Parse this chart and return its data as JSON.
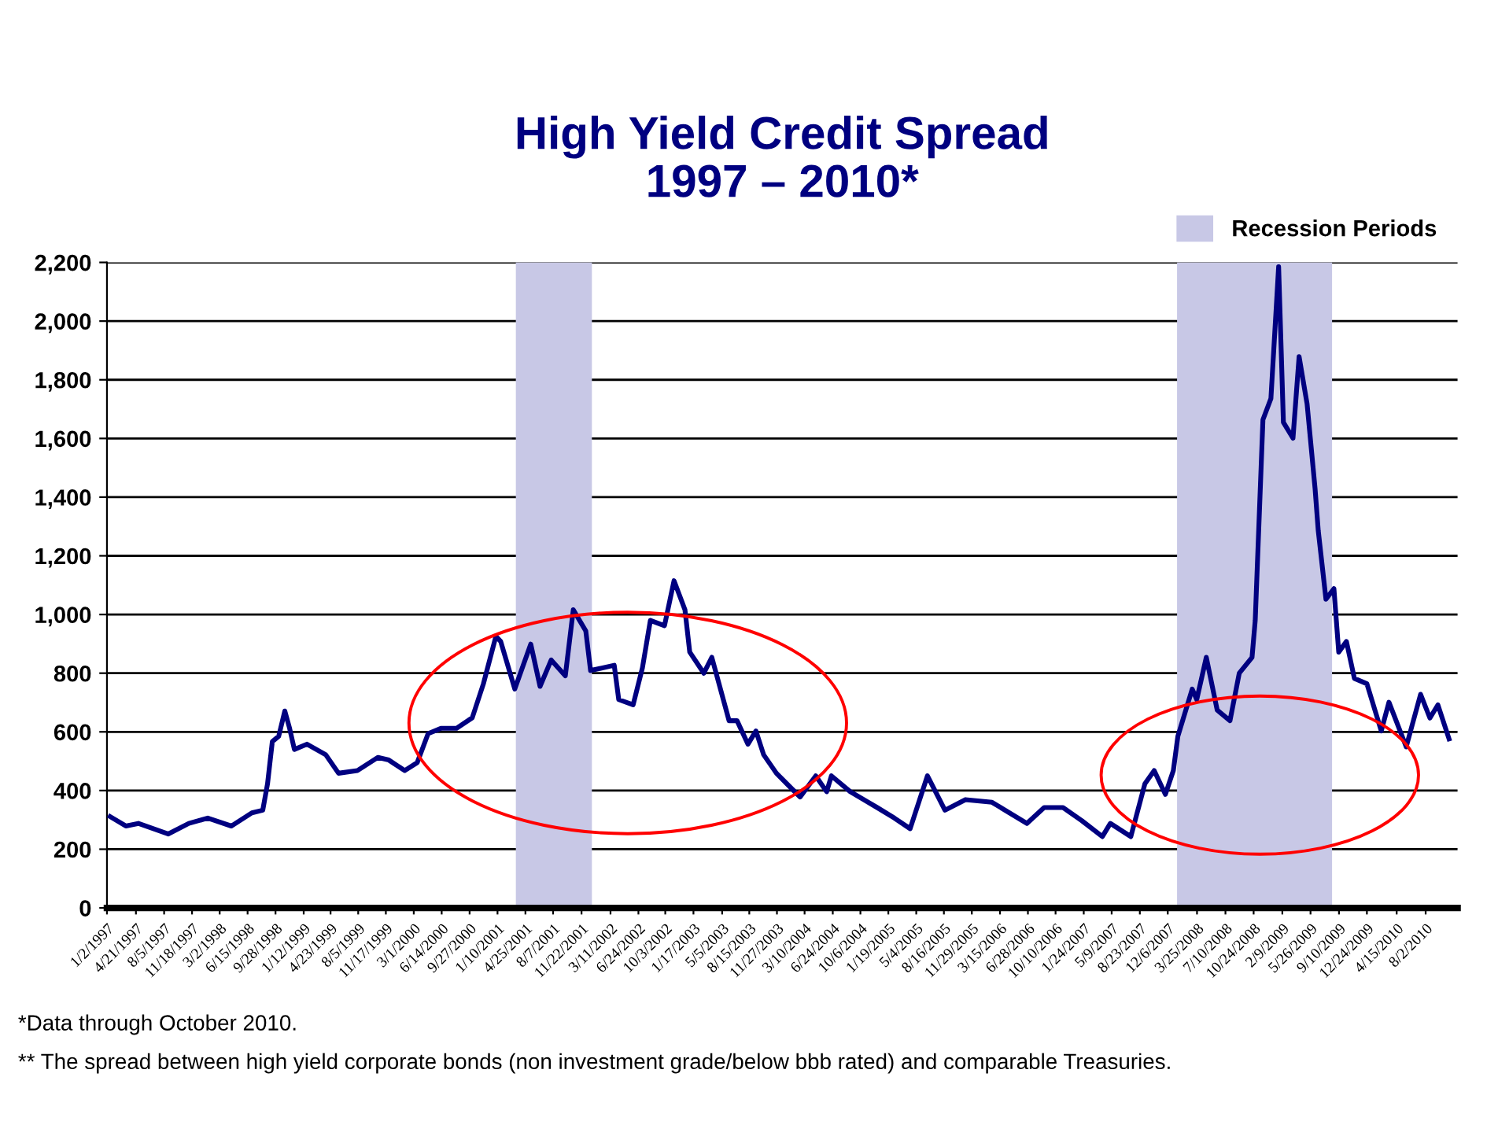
{
  "chart_data": {
    "type": "line",
    "title": "High Yield Credit Spread\n1997 – 2010*",
    "annotations": [
      "*Data through October 2010.",
      "** The spread between high yield corporate bonds (non investment grade/below bbb rated) and comparable Treasuries."
    ],
    "x": [
      "1997-01-14",
      "1997-03-14",
      "1997-04-30",
      "1997-08-21",
      "1997-11-06",
      "1998-01-16",
      "1998-04-15",
      "1998-07-01",
      "1998-08-11",
      "1998-08-29",
      "1998-09-16",
      "1998-10-10",
      "1998-11-02",
      "1998-11-20",
      "1998-12-08",
      "1999-01-24",
      "1999-04-05",
      "1999-05-23",
      "1999-08-02",
      "1999-10-18",
      "1999-11-28",
      "2000-01-27",
      "2000-03-14",
      "2000-04-24",
      "2000-06-11",
      "2000-08-09",
      "2000-10-07",
      "2000-11-18",
      "2001-01-04",
      "2001-01-22",
      "2001-03-16",
      "2001-05-15",
      "2001-06-19",
      "2001-07-31",
      "2001-09-22",
      "2001-10-22",
      "2001-12-08",
      "2001-12-26",
      "2002-03-25",
      "2002-04-11",
      "2002-06-04",
      "2002-07-09",
      "2002-08-08",
      "2002-09-30",
      "2002-11-05",
      "2002-12-16",
      "2003-01-03",
      "2003-02-25",
      "2003-03-27",
      "2003-05-31",
      "2003-06-30",
      "2003-08-10",
      "2003-09-09",
      "2003-10-08",
      "2003-11-25",
      "2004-01-23",
      "2004-02-22",
      "2004-04-21",
      "2004-06-01",
      "2004-06-19",
      "2004-08-29",
      "2004-12-08",
      "2005-02-11",
      "2005-04-11",
      "2005-06-15",
      "2005-08-20",
      "2005-11-05",
      "2006-02-13",
      "2006-06-24",
      "2006-08-28",
      "2006-11-07",
      "2007-01-17",
      "2007-04-04",
      "2007-05-04",
      "2007-07-20",
      "2007-09-11",
      "2007-10-16",
      "2007-11-27",
      "2007-12-27",
      "2008-01-13",
      "2008-03-07",
      "2008-03-24",
      "2008-04-29",
      "2008-06-09",
      "2008-07-27",
      "2008-08-31",
      "2008-10-18",
      "2008-10-30",
      "2008-11-28",
      "2008-12-28",
      "2009-01-26",
      "2009-02-13",
      "2009-03-21",
      "2009-04-13",
      "2009-05-13",
      "2009-06-12",
      "2009-06-24",
      "2009-07-23",
      "2009-08-22",
      "2009-09-09",
      "2009-10-08",
      "2009-11-07",
      "2009-12-24",
      "2010-02-16",
      "2010-03-17",
      "2010-05-21",
      "2010-07-14",
      "2010-08-18",
      "2010-09-17",
      "2010-10-29"
    ],
    "series": [
      {
        "color": "#000080",
        "values": [
          311,
          279,
          288,
          252,
          288,
          306,
          279,
          324,
          333,
          423,
          567,
          585,
          671,
          612,
          540,
          558,
          522,
          459,
          468,
          513,
          504,
          468,
          495,
          594,
          612,
          612,
          648,
          764,
          926,
          908,
          746,
          899,
          755,
          845,
          791,
          1016,
          944,
          809,
          827,
          710,
          692,
          818,
          980,
          962,
          1115,
          1016,
          872,
          800,
          854,
          638,
          638,
          558,
          603,
          522,
          459,
          405,
          378,
          450,
          396,
          450,
          396,
          342,
          306,
          270,
          450,
          333,
          369,
          360,
          288,
          342,
          342,
          297,
          243,
          288,
          243,
          423,
          468,
          387,
          468,
          585,
          746,
          710,
          854,
          674,
          638,
          800,
          854,
          980,
          1664,
          1736,
          2185,
          1655,
          1601,
          1879,
          1718,
          1430,
          1286,
          1052,
          1088,
          872,
          908,
          782,
          764,
          603,
          701,
          549,
          728,
          647,
          692,
          576
        ]
      }
    ],
    "xlim": [
      "1997-01-02",
      "2010-11-30"
    ],
    "xticks": [
      {
        "value": "1997-01-02",
        "label": "1/2/1997"
      },
      {
        "value": "1997-04-21",
        "label": "4/21/1997"
      },
      {
        "value": "1997-08-05",
        "label": "8/5/1997"
      },
      {
        "value": "1997-11-18",
        "label": "11/18/1997"
      },
      {
        "value": "1998-03-02",
        "label": "3/2/1998"
      },
      {
        "value": "1998-06-15",
        "label": "6/15/1998"
      },
      {
        "value": "1998-09-28",
        "label": "9/28/1998"
      },
      {
        "value": "1999-01-12",
        "label": "1/12/1999"
      },
      {
        "value": "1999-04-23",
        "label": "4/23/1999"
      },
      {
        "value": "1999-08-05",
        "label": "8/5/1999"
      },
      {
        "value": "1999-11-17",
        "label": "11/17/1999"
      },
      {
        "value": "2000-03-01",
        "label": "3/1/2000"
      },
      {
        "value": "2000-06-14",
        "label": "6/14/2000"
      },
      {
        "value": "2000-09-27",
        "label": "9/27/2000"
      },
      {
        "value": "2001-01-10",
        "label": "1/10/2001"
      },
      {
        "value": "2001-04-25",
        "label": "4/25/2001"
      },
      {
        "value": "2001-08-07",
        "label": "8/7/2001"
      },
      {
        "value": "2001-11-22",
        "label": "11/22/2001"
      },
      {
        "value": "2002-03-11",
        "label": "3/11/2002"
      },
      {
        "value": "2002-06-24",
        "label": "6/24/2002"
      },
      {
        "value": "2002-10-03",
        "label": "10/3/2002"
      },
      {
        "value": "2003-01-17",
        "label": "1/17/2003"
      },
      {
        "value": "2003-05-05",
        "label": "5/5/2003"
      },
      {
        "value": "2003-08-15",
        "label": "8/15/2003"
      },
      {
        "value": "2003-11-27",
        "label": "11/27/2003"
      },
      {
        "value": "2004-03-10",
        "label": "3/10/2004"
      },
      {
        "value": "2004-06-24",
        "label": "6/24/2004"
      },
      {
        "value": "2004-10-06",
        "label": "10/6/2004"
      },
      {
        "value": "2005-01-19",
        "label": "1/19/2005"
      },
      {
        "value": "2005-05-04",
        "label": "5/4/2005"
      },
      {
        "value": "2005-08-16",
        "label": "8/16/2005"
      },
      {
        "value": "2005-11-29",
        "label": "11/29/2005"
      },
      {
        "value": "2006-03-15",
        "label": "3/15/2006"
      },
      {
        "value": "2006-06-28",
        "label": "6/28/2006"
      },
      {
        "value": "2006-10-10",
        "label": "10/10/2006"
      },
      {
        "value": "2007-01-24",
        "label": "1/24/2007"
      },
      {
        "value": "2007-05-09",
        "label": "5/9/2007"
      },
      {
        "value": "2007-08-23",
        "label": "8/23/2007"
      },
      {
        "value": "2007-12-06",
        "label": "12/6/2007"
      },
      {
        "value": "2008-03-25",
        "label": "3/25/2008"
      },
      {
        "value": "2008-07-10",
        "label": "7/10/2008"
      },
      {
        "value": "2008-10-24",
        "label": "10/24/2008"
      },
      {
        "value": "2009-02-09",
        "label": "2/9/2009"
      },
      {
        "value": "2009-05-26",
        "label": "5/26/2009"
      },
      {
        "value": "2009-09-10",
        "label": "9/10/2009"
      },
      {
        "value": "2009-12-24",
        "label": "12/24/2009"
      },
      {
        "value": "2010-04-15",
        "label": "4/15/2010"
      },
      {
        "value": "2010-08-02",
        "label": "8/2/2010"
      }
    ],
    "ylim": [
      0,
      2200
    ],
    "yticks": [
      0,
      200,
      400,
      600,
      800,
      {
        "value": 1000,
        "label": "1,000"
      },
      {
        "value": 1200,
        "label": "1,200"
      },
      {
        "value": 1400,
        "label": "1,400"
      },
      {
        "value": 1600,
        "label": "1,600"
      },
      {
        "value": 1800,
        "label": "1,800"
      },
      {
        "value": 2000,
        "label": "2,000"
      },
      {
        "value": 2200,
        "label": "2,200"
      }
    ],
    "grid": "y",
    "bands": [
      {
        "axis": "x",
        "from": "2001-03-20",
        "to": "2001-12-31",
        "label": "Recession Periods",
        "color": "#c8c8e6"
      },
      {
        "axis": "x",
        "from": "2008-01-10",
        "to": "2009-08-15",
        "color": "#c8c8e6"
      }
    ],
    "legend": "top right"
  }
}
